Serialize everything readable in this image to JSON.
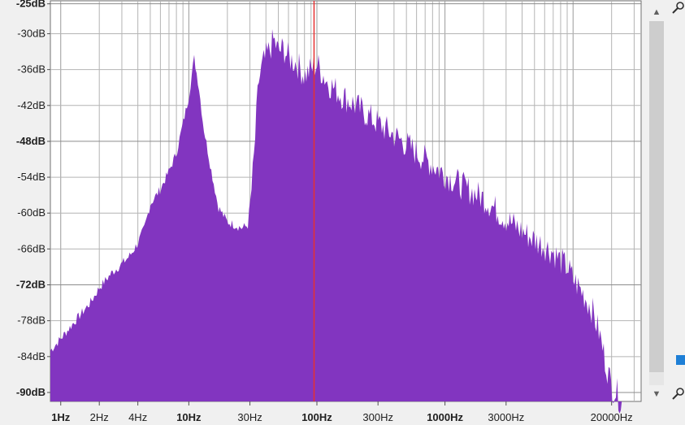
{
  "chart_data": {
    "type": "area",
    "title": "",
    "xlabel": "",
    "ylabel": "",
    "x_scale": "log",
    "xlim": [
      0.83,
      34000
    ],
    "ylim": [
      -91.5,
      -24.5
    ],
    "fill_color": "#8235c0",
    "grid": true,
    "marker_line": {
      "x": 95,
      "color": "#e63030"
    },
    "y_ticks": [
      {
        "value": -25,
        "label": "-25dB",
        "bold": true
      },
      {
        "value": -30,
        "label": "-30dB",
        "bold": false
      },
      {
        "value": -36,
        "label": "-36dB",
        "bold": false
      },
      {
        "value": -42,
        "label": "-42dB",
        "bold": false
      },
      {
        "value": -48,
        "label": "-48dB",
        "bold": true
      },
      {
        "value": -54,
        "label": "-54dB",
        "bold": false
      },
      {
        "value": -60,
        "label": "-60dB",
        "bold": false
      },
      {
        "value": -66,
        "label": "-66dB",
        "bold": false
      },
      {
        "value": -72,
        "label": "-72dB",
        "bold": true
      },
      {
        "value": -78,
        "label": "-78dB",
        "bold": false
      },
      {
        "value": -84,
        "label": "-84dB",
        "bold": false
      },
      {
        "value": -90,
        "label": "-90dB",
        "bold": true
      }
    ],
    "x_ticks": [
      {
        "value": 1,
        "label": "1Hz",
        "bold": true
      },
      {
        "value": 2,
        "label": "2Hz",
        "bold": false
      },
      {
        "value": 4,
        "label": "4Hz",
        "bold": false
      },
      {
        "value": 10,
        "label": "10Hz",
        "bold": true
      },
      {
        "value": 30,
        "label": "30Hz",
        "bold": false
      },
      {
        "value": 100,
        "label": "100Hz",
        "bold": true
      },
      {
        "value": 300,
        "label": "300Hz",
        "bold": false
      },
      {
        "value": 1000,
        "label": "1000Hz",
        "bold": true
      },
      {
        "value": 3000,
        "label": "3000Hz",
        "bold": false
      },
      {
        "value": 20000,
        "label": "20000Hz",
        "bold": false
      }
    ],
    "series": [
      {
        "x": [
          0.83,
          1,
          1.3,
          1.7,
          2,
          2.5,
          3,
          3.5,
          4,
          4.5,
          5,
          6,
          7,
          8,
          9,
          10,
          11,
          12,
          13,
          15,
          17,
          20,
          23,
          26,
          29,
          32,
          35,
          38,
          42,
          46,
          50,
          55,
          60,
          70,
          80,
          90,
          100,
          120,
          150,
          200,
          300,
          400,
          500,
          700,
          1000,
          1500,
          2000,
          3000,
          4000,
          5000,
          6000,
          7000,
          8000,
          9000,
          10000,
          12000,
          14000,
          16000,
          18000,
          20000,
          22000,
          24000
        ],
        "y": [
          -83,
          -81,
          -78,
          -75,
          -72.5,
          -70,
          -68.5,
          -67,
          -65,
          -62.5,
          -58.5,
          -56,
          -53,
          -50,
          -45,
          -40.5,
          -34,
          -39,
          -45.5,
          -53,
          -59,
          -61.5,
          -62,
          -62.5,
          -62,
          -51,
          -37,
          -34,
          -32,
          -30,
          -32,
          -31.5,
          -33,
          -34,
          -36,
          -35,
          -34,
          -37,
          -39,
          -41,
          -44,
          -46,
          -47.5,
          -50,
          -52.5,
          -55,
          -56.5,
          -60,
          -62,
          -63.5,
          -64.5,
          -65.5,
          -67,
          -68,
          -70,
          -72.5,
          -75,
          -79,
          -84,
          -88,
          -89,
          -91
        ]
      }
    ]
  },
  "scrollbar": {
    "up_label": "▲",
    "down_label": "▼"
  }
}
